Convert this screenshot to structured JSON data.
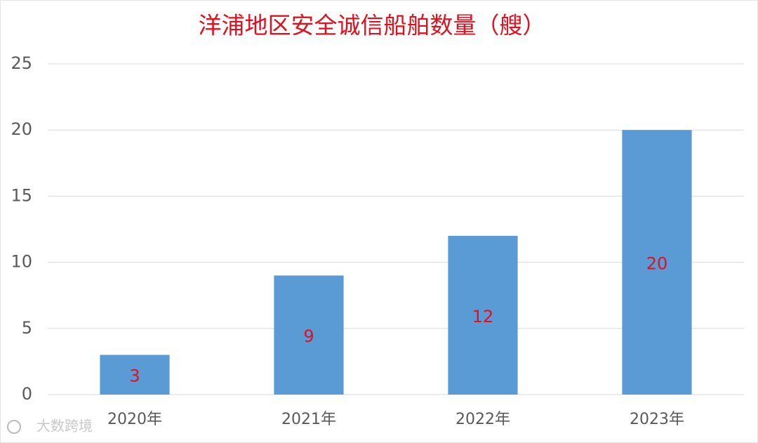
{
  "chart_data": {
    "type": "bar",
    "title": "洋浦地区安全诚信船舶数量（艘）",
    "categories": [
      "2020年",
      "2021年",
      "2022年",
      "2023年"
    ],
    "values": [
      3,
      9,
      12,
      20
    ],
    "color": "#5b9bd5",
    "label_color": "#e0101e",
    "data_labels": true,
    "ylim": [
      0,
      25
    ],
    "yticks": [
      0,
      5,
      10,
      15,
      20,
      25
    ],
    "grid": true
  },
  "watermark": "大数跨境"
}
